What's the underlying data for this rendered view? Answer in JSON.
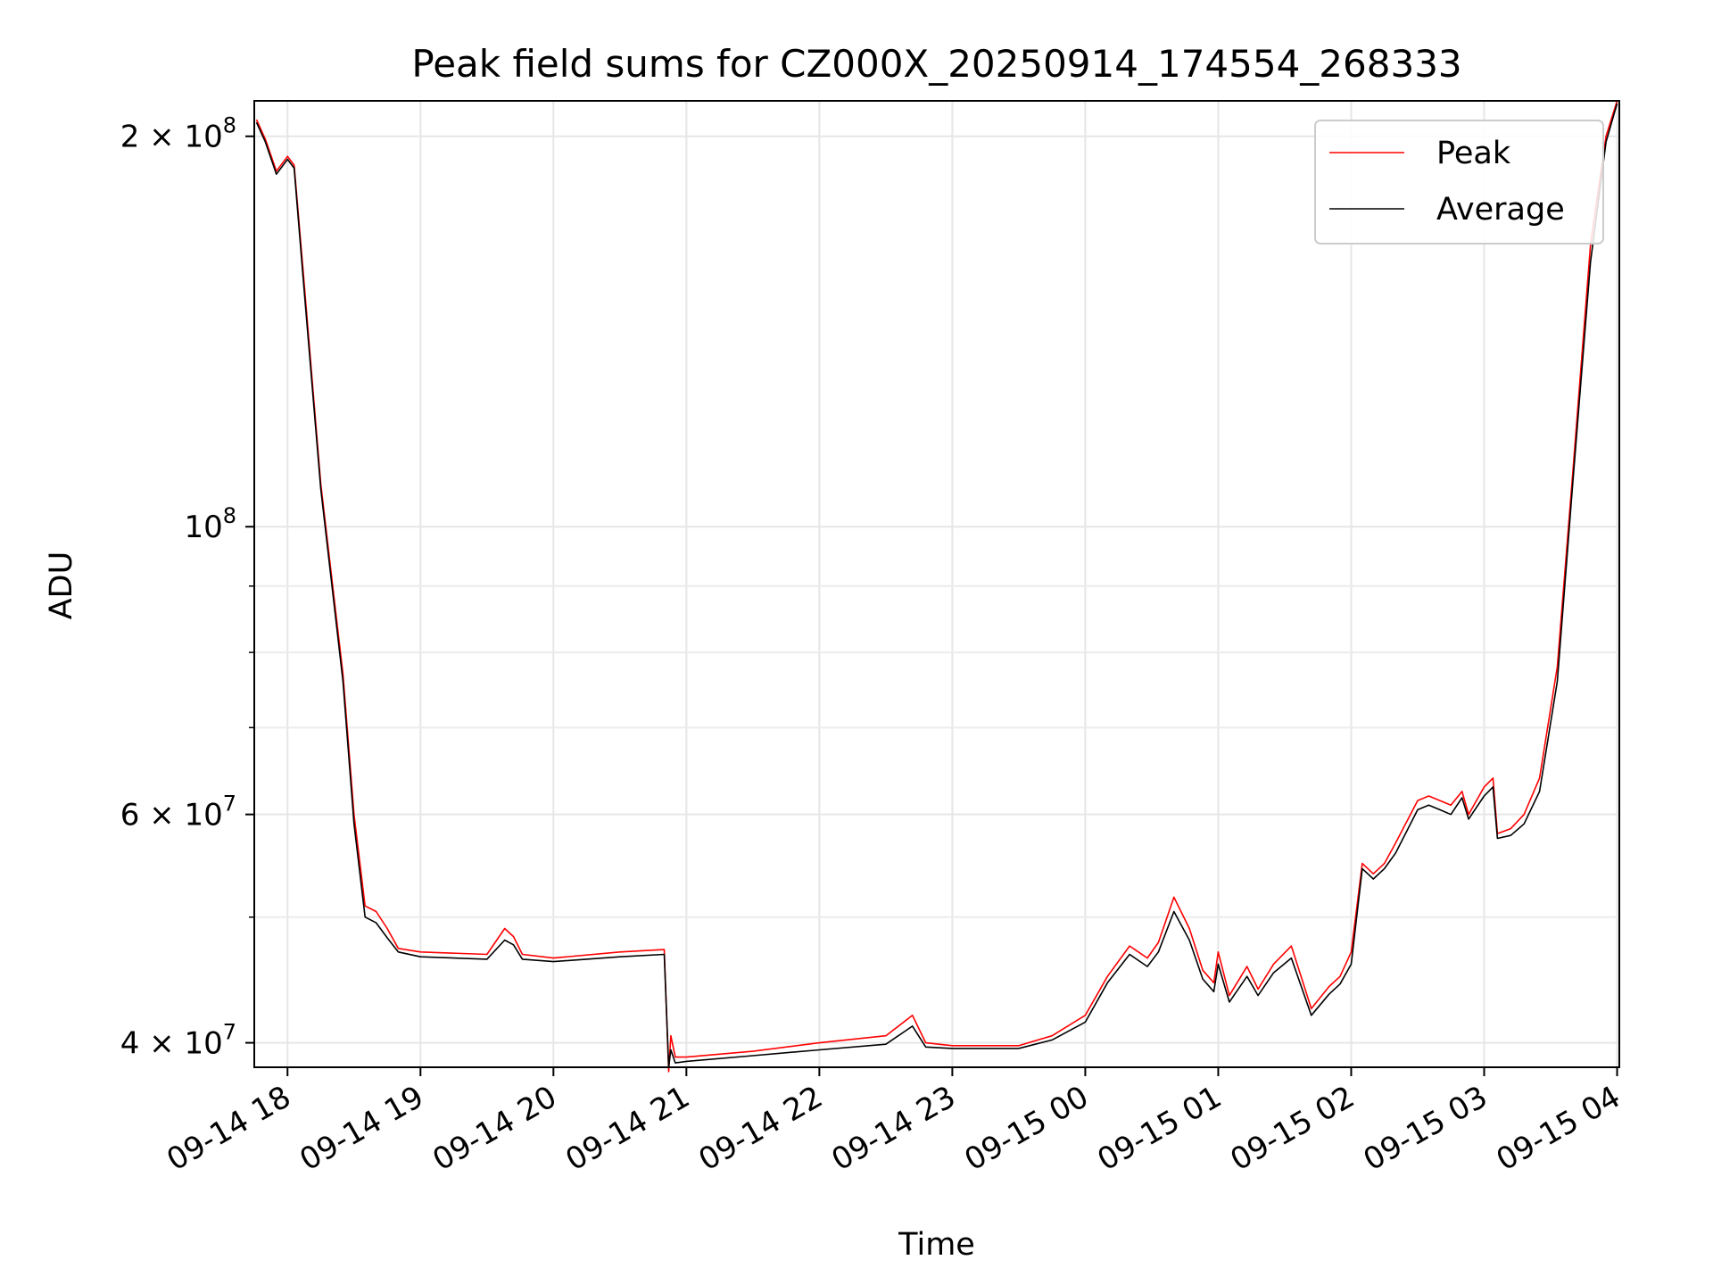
{
  "chart_data": {
    "type": "line",
    "title": "Peak field sums for CZ000X_20250914_174554_268333",
    "xlabel": "Time",
    "ylabel": "ADU",
    "y_scale": "log",
    "grid": true,
    "legend_placement": "top-right",
    "xlim": [
      "2025-09-14 17:45",
      "2025-09-15 04:01"
    ],
    "ylim": [
      38300000,
      213000000
    ],
    "x_ticks": [
      "09-14 18",
      "09-14 19",
      "09-14 20",
      "09-14 21",
      "09-14 22",
      "09-14 23",
      "09-15 00",
      "09-15 01",
      "09-15 02",
      "09-15 03",
      "09-15 04"
    ],
    "x_tick_values": [
      "2025-09-14 18:00",
      "2025-09-14 19:00",
      "2025-09-14 20:00",
      "2025-09-14 21:00",
      "2025-09-14 22:00",
      "2025-09-14 23:00",
      "2025-09-15 00:00",
      "2025-09-15 01:00",
      "2025-09-15 02:00",
      "2025-09-15 03:00",
      "2025-09-15 04:00"
    ],
    "y_major_ticks": [
      {
        "value": 40000000,
        "mantissa": "4",
        "exponent": "7"
      },
      {
        "value": 60000000,
        "mantissa": "6",
        "exponent": "7"
      },
      {
        "value": 100000000,
        "mantissa": "",
        "exponent": "8"
      },
      {
        "value": 200000000,
        "mantissa": "2",
        "exponent": "8"
      }
    ],
    "y_minor_ticks": [
      50000000,
      70000000,
      80000000,
      90000000
    ],
    "series": [
      {
        "name": "Peak",
        "color": "#ff0000",
        "x": [
          "2025-09-14 17:46",
          "2025-09-14 17:50",
          "2025-09-14 17:55",
          "2025-09-14 18:00",
          "2025-09-14 18:03",
          "2025-09-14 18:07",
          "2025-09-14 18:15",
          "2025-09-14 18:25",
          "2025-09-14 18:30",
          "2025-09-14 18:35",
          "2025-09-14 18:40",
          "2025-09-14 18:45",
          "2025-09-14 18:50",
          "2025-09-14 19:00",
          "2025-09-14 19:30",
          "2025-09-14 19:38",
          "2025-09-14 19:42",
          "2025-09-14 19:46",
          "2025-09-14 20:00",
          "2025-09-14 20:30",
          "2025-09-14 20:50",
          "2025-09-14 20:52",
          "2025-09-14 20:53",
          "2025-09-14 20:55",
          "2025-09-14 21:00",
          "2025-09-14 21:30",
          "2025-09-14 22:00",
          "2025-09-14 22:30",
          "2025-09-14 22:42",
          "2025-09-14 22:48",
          "2025-09-14 23:00",
          "2025-09-14 23:30",
          "2025-09-14 23:45",
          "2025-09-15 00:00",
          "2025-09-15 00:10",
          "2025-09-15 00:20",
          "2025-09-15 00:28",
          "2025-09-15 00:33",
          "2025-09-15 00:40",
          "2025-09-15 00:47",
          "2025-09-15 00:53",
          "2025-09-15 00:58",
          "2025-09-15 01:00",
          "2025-09-15 01:05",
          "2025-09-15 01:13",
          "2025-09-15 01:18",
          "2025-09-15 01:25",
          "2025-09-15 01:33",
          "2025-09-15 01:42",
          "2025-09-15 01:50",
          "2025-09-15 01:55",
          "2025-09-15 02:00",
          "2025-09-15 02:05",
          "2025-09-15 02:10",
          "2025-09-15 02:15",
          "2025-09-15 02:20",
          "2025-09-15 02:30",
          "2025-09-15 02:35",
          "2025-09-15 02:40",
          "2025-09-15 02:45",
          "2025-09-15 02:50",
          "2025-09-15 02:53",
          "2025-09-15 03:00",
          "2025-09-15 03:04",
          "2025-09-15 03:06",
          "2025-09-15 03:12",
          "2025-09-15 03:18",
          "2025-09-15 03:25",
          "2025-09-15 03:33",
          "2025-09-15 03:40",
          "2025-09-15 03:48",
          "2025-09-15 03:55",
          "2025-09-15 04:00"
        ],
        "values": [
          206000000,
          199000000,
          188000000,
          193000000,
          190000000,
          158000000,
          108000000,
          77000000,
          60000000,
          51000000,
          50500000,
          49000000,
          47300000,
          47000000,
          46800000,
          49000000,
          48300000,
          46800000,
          46500000,
          47000000,
          47200000,
          38000000,
          40500000,
          39000000,
          39000000,
          39400000,
          40000000,
          40500000,
          42000000,
          40000000,
          39800000,
          39800000,
          40500000,
          42000000,
          45000000,
          47500000,
          46500000,
          47800000,
          51800000,
          49000000,
          45500000,
          44500000,
          47000000,
          43500000,
          45800000,
          44000000,
          46000000,
          47500000,
          42500000,
          44200000,
          45000000,
          47000000,
          55000000,
          54000000,
          55000000,
          57000000,
          61500000,
          62000000,
          61500000,
          61000000,
          62500000,
          60000000,
          63000000,
          64000000,
          58000000,
          58500000,
          60000000,
          64000000,
          78000000,
          110000000,
          165000000,
          200000000,
          213000000
        ]
      },
      {
        "name": "Average",
        "color": "#000000",
        "x": [
          "2025-09-14 17:46",
          "2025-09-14 17:50",
          "2025-09-14 17:55",
          "2025-09-14 18:00",
          "2025-09-14 18:03",
          "2025-09-14 18:07",
          "2025-09-14 18:15",
          "2025-09-14 18:25",
          "2025-09-14 18:30",
          "2025-09-14 18:35",
          "2025-09-14 18:40",
          "2025-09-14 18:45",
          "2025-09-14 18:50",
          "2025-09-14 19:00",
          "2025-09-14 19:30",
          "2025-09-14 19:38",
          "2025-09-14 19:42",
          "2025-09-14 19:46",
          "2025-09-14 20:00",
          "2025-09-14 20:30",
          "2025-09-14 20:50",
          "2025-09-14 20:52",
          "2025-09-14 20:53",
          "2025-09-14 20:55",
          "2025-09-14 21:00",
          "2025-09-14 21:30",
          "2025-09-14 22:00",
          "2025-09-14 22:30",
          "2025-09-14 22:42",
          "2025-09-14 22:48",
          "2025-09-14 23:00",
          "2025-09-14 23:30",
          "2025-09-14 23:45",
          "2025-09-15 00:00",
          "2025-09-15 00:10",
          "2025-09-15 00:20",
          "2025-09-15 00:28",
          "2025-09-15 00:33",
          "2025-09-15 00:40",
          "2025-09-15 00:47",
          "2025-09-15 00:53",
          "2025-09-15 00:58",
          "2025-09-15 01:00",
          "2025-09-15 01:05",
          "2025-09-15 01:13",
          "2025-09-15 01:18",
          "2025-09-15 01:25",
          "2025-09-15 01:33",
          "2025-09-15 01:42",
          "2025-09-15 01:50",
          "2025-09-15 01:55",
          "2025-09-15 02:00",
          "2025-09-15 02:05",
          "2025-09-15 02:10",
          "2025-09-15 02:15",
          "2025-09-15 02:20",
          "2025-09-15 02:30",
          "2025-09-15 02:35",
          "2025-09-15 02:40",
          "2025-09-15 02:45",
          "2025-09-15 02:50",
          "2025-09-15 02:53",
          "2025-09-15 03:00",
          "2025-09-15 03:04",
          "2025-09-15 03:06",
          "2025-09-15 03:12",
          "2025-09-15 03:18",
          "2025-09-15 03:25",
          "2025-09-15 03:33",
          "2025-09-15 03:40",
          "2025-09-15 03:48",
          "2025-09-15 03:55",
          "2025-09-15 04:00"
        ],
        "values": [
          205000000,
          198000000,
          187000000,
          192000000,
          189000000,
          156000000,
          107000000,
          76000000,
          59000000,
          50000000,
          49500000,
          48200000,
          47000000,
          46600000,
          46400000,
          48000000,
          47600000,
          46400000,
          46200000,
          46600000,
          46800000,
          38300000,
          39500000,
          38600000,
          38700000,
          39100000,
          39500000,
          39900000,
          41200000,
          39700000,
          39600000,
          39600000,
          40200000,
          41500000,
          44500000,
          46800000,
          45800000,
          47000000,
          50500000,
          48000000,
          44800000,
          43800000,
          46000000,
          43000000,
          45000000,
          43500000,
          45300000,
          46500000,
          42000000,
          43600000,
          44400000,
          46000000,
          54500000,
          53500000,
          54500000,
          56000000,
          60500000,
          61000000,
          60500000,
          60000000,
          61800000,
          59500000,
          62000000,
          63000000,
          57500000,
          57800000,
          59000000,
          62500000,
          76000000,
          108000000,
          160000000,
          198000000,
          212000000
        ]
      }
    ]
  }
}
